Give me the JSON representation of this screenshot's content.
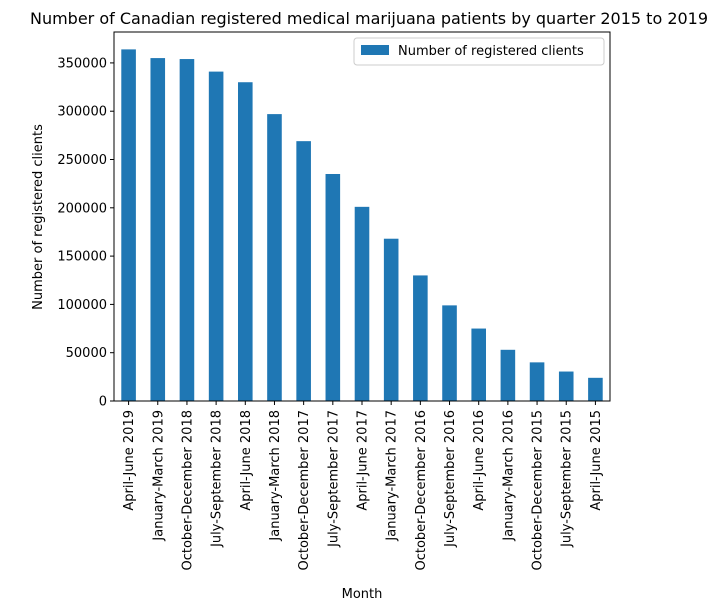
{
  "chart_data": {
    "type": "bar",
    "title": "Number of Canadian registered medical marijuana patients by quarter 2015 to 2019",
    "xlabel": "Month",
    "ylabel": "Number of registered clients",
    "categories": [
      "April-June 2019",
      "January-March 2019",
      "October-December 2018",
      "July-September 2018",
      "April-June 2018",
      "January-March 2018",
      "October-December 2017",
      "July-September 2017",
      "April-June 2017",
      "January-March 2017",
      "October-December 2016",
      "July-September 2016",
      "April-June 2016",
      "January-March 2016",
      "October-December 2015",
      "July-September 2015",
      "April-June 2015"
    ],
    "series": [
      {
        "name": "Number of registered clients",
        "color": "#1f77b4",
        "values": [
          364000,
          355000,
          354000,
          341000,
          330000,
          297000,
          269000,
          235000,
          201000,
          168000,
          130000,
          99000,
          75000,
          53000,
          40000,
          30500,
          24000
        ]
      }
    ],
    "yticks": [
      0,
      50000,
      100000,
      150000,
      200000,
      250000,
      300000,
      350000
    ],
    "ylim": [
      0,
      382000
    ],
    "grid": false,
    "legend": "top-right"
  }
}
